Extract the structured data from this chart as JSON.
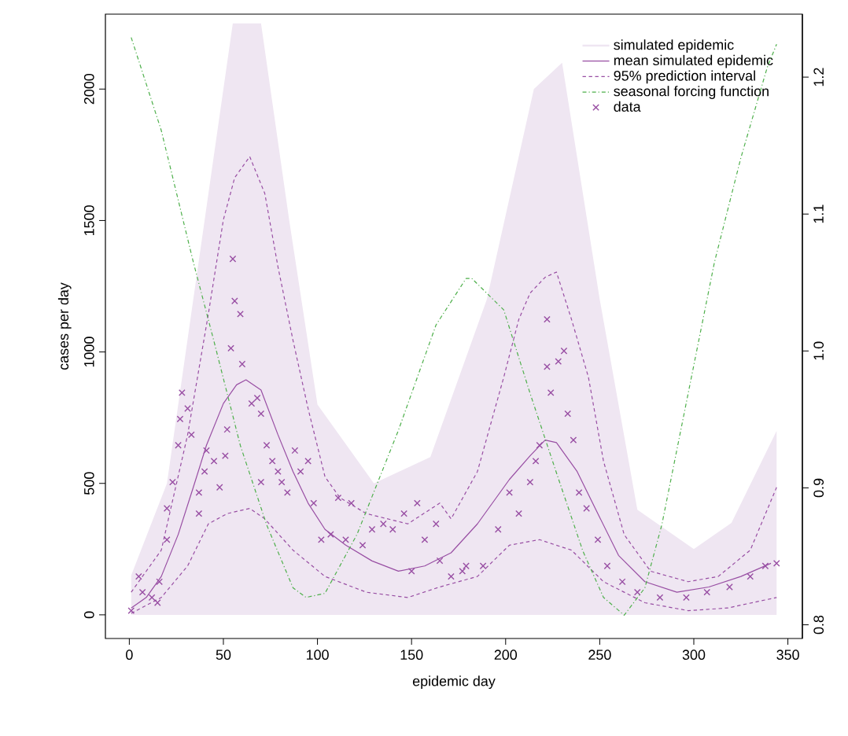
{
  "chart_data": {
    "type": "line",
    "xlabel": "epidemic day",
    "ylabel": "cases per day",
    "xlim": [
      -12.7,
      357.7
    ],
    "ylim": [
      -90,
      2285
    ],
    "y2lim": [
      0.79,
      1.246
    ],
    "xticks": [
      0,
      50,
      100,
      150,
      200,
      250,
      300,
      350
    ],
    "yticks": [
      0,
      500,
      1000,
      1500,
      2000
    ],
    "y2ticks": [
      0.8,
      0.9,
      {
        "value": 1.0,
        "label": "1.0"
      },
      1.1,
      1.2
    ],
    "legend": "top right",
    "grid": false,
    "series": [
      {
        "name": "simulated epidemic",
        "type": "area",
        "color": "#efe6f2",
        "x": [
          1,
          20,
          40,
          55,
          70,
          85,
          100,
          130,
          160,
          190,
          215,
          230,
          250,
          270,
          300,
          320,
          344
        ],
        "values": [
          150,
          500,
          1500,
          2250,
          2250,
          1500,
          800,
          500,
          600,
          1200,
          2000,
          2100,
          1200,
          400,
          250,
          350,
          700
        ]
      },
      {
        "name": "mean simulated epidemic",
        "line_style": "solid",
        "color": "#984ea3",
        "x": [
          1,
          9,
          17,
          26,
          34,
          41,
          50,
          57,
          62,
          70,
          79,
          87,
          95,
          104,
          115,
          129,
          143,
          157,
          171,
          185,
          202,
          213,
          221,
          227,
          238,
          249,
          260,
          274,
          291,
          308,
          325,
          341
        ],
        "values": [
          26,
          66,
          146,
          306,
          485,
          645,
          804,
          875,
          894,
          855,
          685,
          545,
          425,
          325,
          265,
          205,
          166,
          186,
          236,
          346,
          515,
          605,
          665,
          655,
          545,
          385,
          226,
          126,
          86,
          106,
          146,
          196
        ]
      },
      {
        "name": "95% prediction interval",
        "line_style": "dashed",
        "color": "#984ea3",
        "x": [
          1,
          17,
          31,
          42,
          50,
          56,
          64,
          72,
          79,
          87,
          95,
          104,
          112,
          126,
          148,
          165,
          171,
          185,
          199,
          207,
          213,
          221,
          227,
          235,
          244,
          252,
          263,
          277,
          297,
          313,
          330,
          344
        ],
        "values": [
          86,
          246,
          685,
          1144,
          1503,
          1663,
          1743,
          1603,
          1324,
          1044,
          785,
          525,
          445,
          385,
          346,
          425,
          365,
          545,
          904,
          1124,
          1224,
          1284,
          1304,
          1124,
          904,
          585,
          305,
          166,
          126,
          146,
          246,
          485
        ]
      },
      {
        "line_style": "dashed",
        "color": "#984ea3",
        "x": [
          1,
          17,
          31,
          42,
          52,
          64,
          72,
          87,
          104,
          126,
          148,
          165,
          185,
          202,
          218,
          235,
          252,
          274,
          297,
          318,
          344
        ],
        "values": [
          6,
          66,
          186,
          346,
          385,
          405,
          365,
          246,
          146,
          86,
          66,
          106,
          146,
          265,
          286,
          246,
          126,
          46,
          16,
          26,
          66
        ]
      },
      {
        "name": "seasonal forcing function",
        "line_style": "dashdot",
        "axis": "y2",
        "color": "#4daf4a",
        "x": [
          1,
          17,
          34,
          45,
          59,
          73,
          87,
          94,
          104,
          121,
          143,
          163,
          179,
          182,
          199,
          213,
          227,
          241,
          252,
          263,
          274,
          283,
          297,
          311,
          325,
          339,
          344
        ],
        "values": [
          1.229,
          1.161,
          1.065,
          1.007,
          0.931,
          0.873,
          0.827,
          0.82,
          0.823,
          0.866,
          0.942,
          1.019,
          1.053,
          1.053,
          1.03,
          0.969,
          0.911,
          0.854,
          0.82,
          0.807,
          0.827,
          0.873,
          0.969,
          1.065,
          1.141,
          1.207,
          1.224
        ]
      },
      {
        "name": "data",
        "type": "scatter",
        "marker": "cross",
        "color": "#984ea3",
        "x": [
          1,
          5,
          7,
          12,
          15,
          16,
          20,
          20,
          23,
          26,
          27,
          28,
          31,
          33,
          37,
          37,
          40,
          41,
          45,
          48,
          51,
          52,
          54,
          55,
          56,
          59,
          60,
          65,
          68,
          70,
          70,
          73,
          76,
          79,
          81,
          84,
          88,
          91,
          95,
          98,
          102,
          107,
          111,
          115,
          118,
          124,
          129,
          135,
          140,
          146,
          150,
          153,
          157,
          163,
          165,
          171,
          177,
          179,
          188,
          196,
          202,
          207,
          213,
          216,
          218,
          222,
          222,
          224,
          228,
          231,
          233,
          236,
          239,
          243,
          249,
          254,
          262,
          270,
          282,
          296,
          307,
          319,
          330,
          338,
          344
        ],
        "values": [
          16,
          146,
          86,
          66,
          46,
          126,
          286,
          405,
          505,
          645,
          745,
          845,
          785,
          685,
          465,
          385,
          545,
          625,
          585,
          485,
          605,
          705,
          1014,
          1354,
          1194,
          1144,
          954,
          804,
          825,
          765,
          505,
          645,
          585,
          545,
          505,
          465,
          625,
          545,
          585,
          425,
          286,
          306,
          445,
          286,
          425,
          265,
          325,
          346,
          325,
          385,
          166,
          425,
          286,
          346,
          206,
          146,
          166,
          186,
          186,
          325,
          465,
          385,
          505,
          585,
          645,
          944,
          1124,
          845,
          964,
          1004,
          765,
          665,
          465,
          405,
          286,
          186,
          126,
          86,
          66,
          66,
          86,
          106,
          146,
          186,
          196
        ]
      }
    ]
  }
}
